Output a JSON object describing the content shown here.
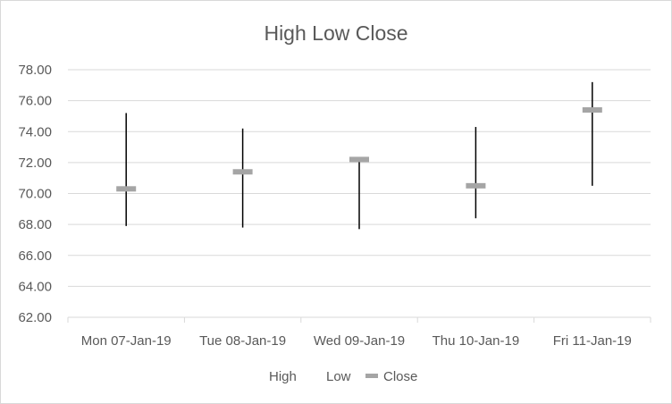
{
  "chart_data": {
    "type": "stock-hlc",
    "title": "High Low Close",
    "categories": [
      "Mon 07-Jan-19",
      "Tue 08-Jan-19",
      "Wed 09-Jan-19",
      "Thu 10-Jan-19",
      "Fri 11-Jan-19"
    ],
    "series": [
      {
        "name": "High",
        "values": [
          75.2,
          74.2,
          72.2,
          74.3,
          77.2
        ]
      },
      {
        "name": "Low",
        "values": [
          67.9,
          67.8,
          67.7,
          68.4,
          70.5
        ]
      },
      {
        "name": "Close",
        "values": [
          70.3,
          71.4,
          72.2,
          70.5,
          75.4
        ]
      }
    ],
    "y_ticks": [
      "62.00",
      "64.00",
      "66.00",
      "68.00",
      "70.00",
      "72.00",
      "74.00",
      "76.00",
      "78.00"
    ],
    "ylim": [
      62,
      78
    ],
    "grid": true,
    "legend_position": "bottom",
    "colors": {
      "high_low_line": "#000000",
      "close_marker": "#a5a5a5",
      "grid": "#d9d9d9",
      "text": "#595959"
    }
  }
}
